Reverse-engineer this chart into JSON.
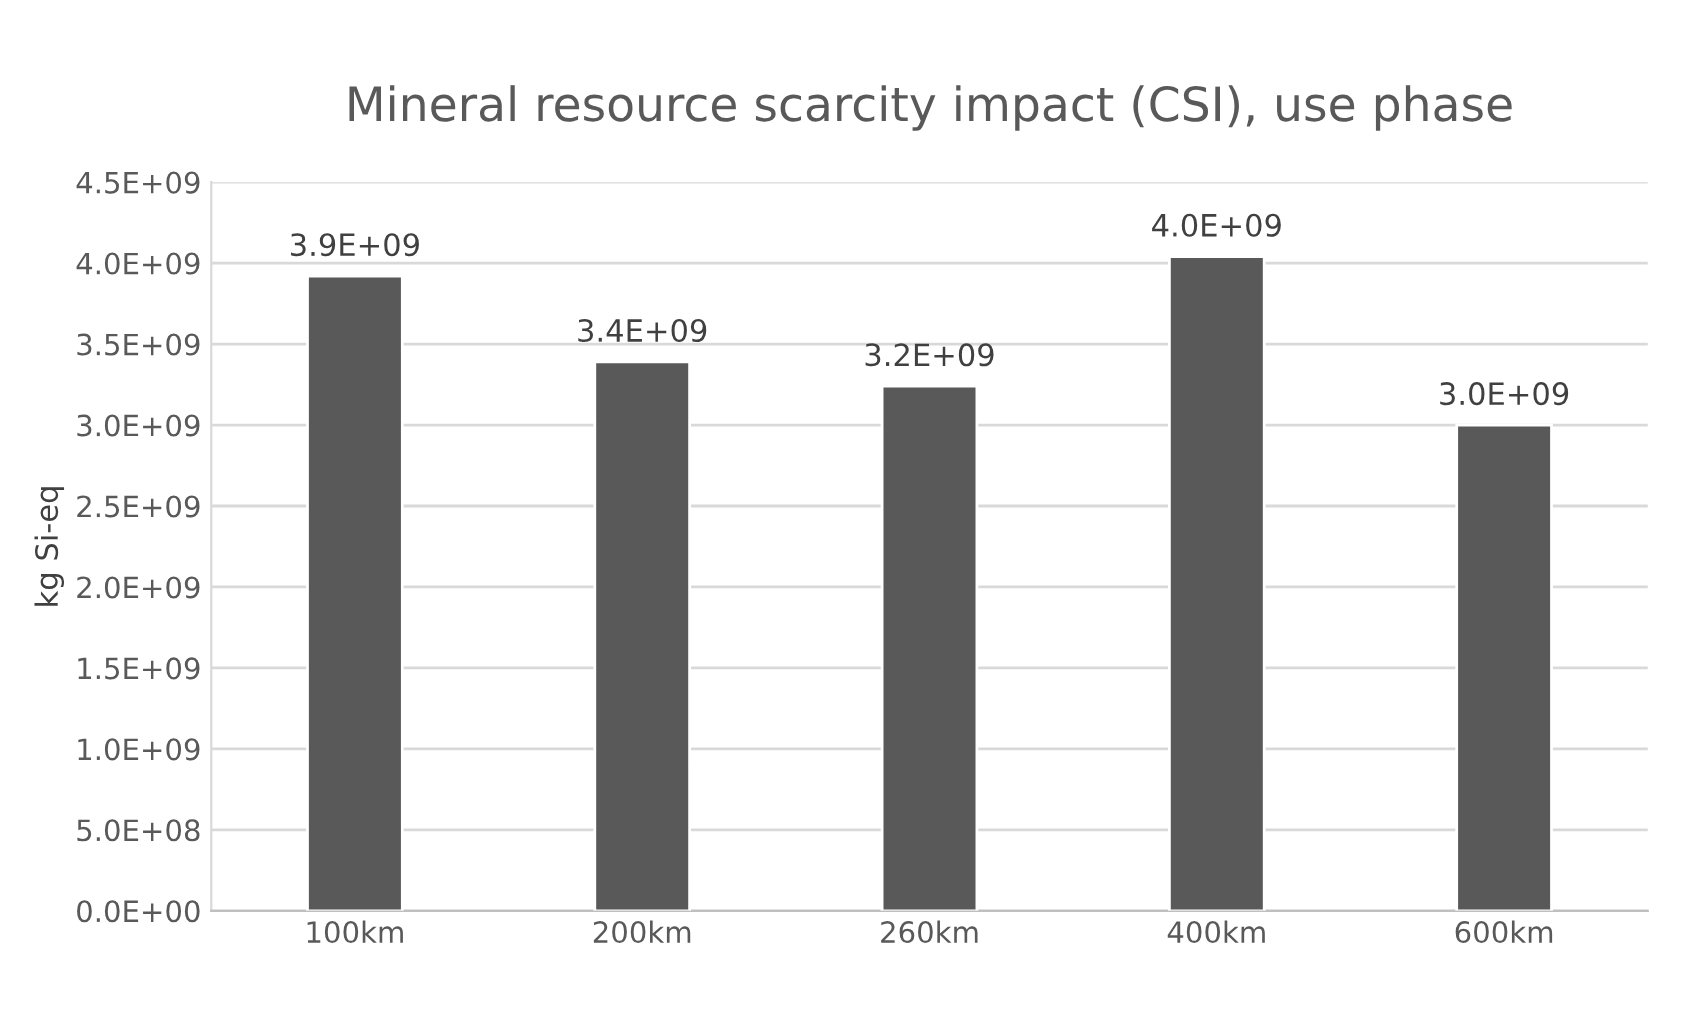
{
  "chart_data": {
    "type": "bar",
    "title": "Mineral resource scarcity impact (CSI), use phase",
    "ylabel": "kg Si-eq",
    "categories": [
      "100km",
      "200km",
      "260km",
      "400km",
      "600km"
    ],
    "values": [
      3920000000.0,
      3390000000.0,
      3240000000.0,
      4040000000.0,
      3000000000.0
    ],
    "value_labels": [
      "3.9E+09",
      "3.4E+09",
      "3.2E+09",
      "4.0E+09",
      "3.0E+09"
    ],
    "color": "#595959",
    "ylim": [
      0,
      4500000000.0
    ],
    "yticks": [
      {
        "value": 0,
        "label": "0.0E+00"
      },
      {
        "value": 500000000.0,
        "label": "5.0E+08"
      },
      {
        "value": 1000000000.0,
        "label": "1.0E+09"
      },
      {
        "value": 1500000000.0,
        "label": "1.5E+09"
      },
      {
        "value": 2000000000.0,
        "label": "2.0E+09"
      },
      {
        "value": 2500000000.0,
        "label": "2.5E+09"
      },
      {
        "value": 3000000000.0,
        "label": "3.0E+09"
      },
      {
        "value": 3500000000.0,
        "label": "3.5E+09"
      },
      {
        "value": 4000000000.0,
        "label": "4.0E+09"
      },
      {
        "value": 4500000000.0,
        "label": "4.5E+09"
      }
    ],
    "grid": "y"
  }
}
